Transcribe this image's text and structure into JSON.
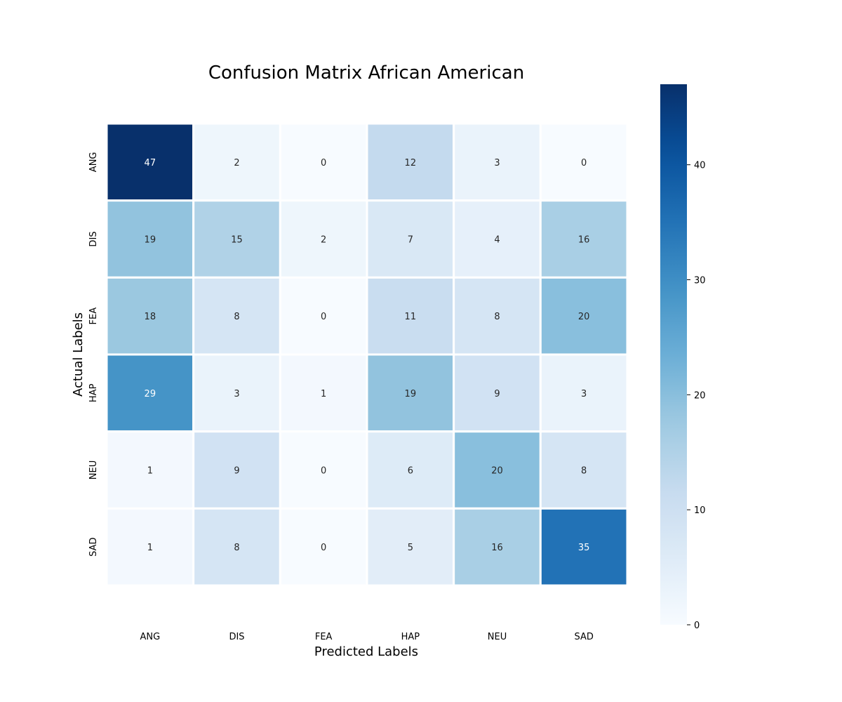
{
  "chart_data": {
    "type": "heatmap",
    "title": "Confusion Matrix African American",
    "xlabel": "Predicted Labels",
    "ylabel": "Actual Labels",
    "x_categories": [
      "ANG",
      "DIS",
      "FEA",
      "HAP",
      "NEU",
      "SAD"
    ],
    "y_categories": [
      "ANG",
      "DIS",
      "FEA",
      "HAP",
      "NEU",
      "SAD"
    ],
    "values": [
      [
        47,
        2,
        0,
        12,
        3,
        0
      ],
      [
        19,
        15,
        2,
        7,
        4,
        16
      ],
      [
        18,
        8,
        0,
        11,
        8,
        20
      ],
      [
        29,
        3,
        1,
        19,
        9,
        3
      ],
      [
        1,
        9,
        0,
        6,
        20,
        8
      ],
      [
        1,
        8,
        0,
        5,
        16,
        35
      ]
    ],
    "colorbar": {
      "min": 0,
      "max": 47,
      "ticks": [
        0,
        10,
        20,
        30,
        40
      ],
      "colormap": "Blues"
    },
    "grid": false
  }
}
